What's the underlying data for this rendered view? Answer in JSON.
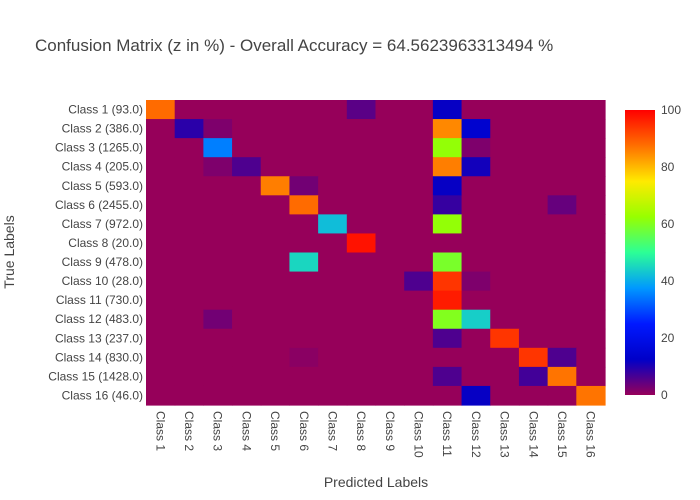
{
  "chart_data": {
    "type": "heatmap",
    "title": "Confusion Matrix (z in %) - Overall Accuracy = 64.5623963313494 %",
    "xlabel": "Predicted Labels",
    "ylabel": "True Labels",
    "x_categories": [
      "Class 1",
      "Class 2",
      "Class 3",
      "Class 4",
      "Class 5",
      "Class 6",
      "Class 7",
      "Class 8",
      "Class 9",
      "Class 10",
      "Class 11",
      "Class 12",
      "Class 13",
      "Class 14",
      "Class 15",
      "Class 16"
    ],
    "y_categories": [
      "Class 1 (93.0)",
      "Class 2 (386.0)",
      "Class 3 (1265.0)",
      "Class 4 (205.0)",
      "Class 5 (593.0)",
      "Class 6 (2455.0)",
      "Class 7 (972.0)",
      "Class 8 (20.0)",
      "Class 9 (478.0)",
      "Class 10 (28.0)",
      "Class 11 (730.0)",
      "Class 12 (483.0)",
      "Class 13 (237.0)",
      "Class 14 (830.0)",
      "Class 15 (1428.0)",
      "Class 16 (46.0)"
    ],
    "z": [
      [
        88,
        0,
        0,
        0,
        0,
        0,
        0,
        5,
        0,
        0,
        12,
        0,
        0,
        0,
        0,
        0
      ],
      [
        0,
        9,
        2,
        0,
        0,
        0,
        0,
        0,
        0,
        0,
        85,
        14,
        0,
        0,
        0,
        0
      ],
      [
        0,
        0,
        35,
        0,
        0,
        0,
        0,
        0,
        0,
        0,
        62,
        2,
        0,
        0,
        0,
        0
      ],
      [
        0,
        0,
        2,
        6,
        0,
        0,
        0,
        0,
        0,
        0,
        86,
        11,
        0,
        0,
        0,
        0
      ],
      [
        0,
        0,
        0,
        0,
        86,
        3,
        0,
        0,
        0,
        0,
        12,
        0,
        0,
        0,
        0,
        0
      ],
      [
        0,
        0,
        0,
        0,
        0,
        88,
        0,
        0,
        0,
        0,
        8,
        0,
        0,
        0,
        4,
        0
      ],
      [
        0,
        0,
        0,
        0,
        0,
        0,
        42,
        0,
        0,
        0,
        62,
        0,
        0,
        0,
        0,
        0
      ],
      [
        0,
        0,
        0,
        0,
        0,
        0,
        0,
        98,
        0,
        0,
        0,
        0,
        0,
        0,
        0,
        0
      ],
      [
        0,
        0,
        0,
        0,
        0,
        45,
        0,
        0,
        0,
        0,
        59,
        0,
        0,
        0,
        0,
        0
      ],
      [
        0,
        0,
        0,
        0,
        0,
        0,
        0,
        0,
        0,
        6,
        94,
        2,
        0,
        0,
        0,
        0
      ],
      [
        0,
        0,
        0,
        0,
        0,
        0,
        0,
        0,
        0,
        0,
        97,
        0,
        0,
        0,
        0,
        0
      ],
      [
        0,
        0,
        3,
        0,
        0,
        0,
        0,
        0,
        0,
        0,
        60,
        44,
        0,
        0,
        0,
        0
      ],
      [
        0,
        0,
        0,
        0,
        0,
        0,
        0,
        0,
        0,
        0,
        6,
        0,
        94,
        0,
        0,
        0
      ],
      [
        0,
        0,
        0,
        0,
        0,
        1,
        0,
        0,
        0,
        0,
        0,
        0,
        0,
        94,
        6,
        0
      ],
      [
        0,
        0,
        0,
        0,
        0,
        0,
        0,
        0,
        0,
        0,
        6,
        0,
        0,
        7,
        87,
        0
      ],
      [
        0,
        0,
        0,
        0,
        0,
        0,
        0,
        0,
        0,
        0,
        0,
        12,
        0,
        0,
        0,
        87
      ]
    ],
    "zrange": [
      0,
      100
    ],
    "colorbar": {
      "ticks": [
        0,
        20,
        40,
        60,
        80,
        100
      ],
      "colorscale": "rainbow"
    }
  }
}
